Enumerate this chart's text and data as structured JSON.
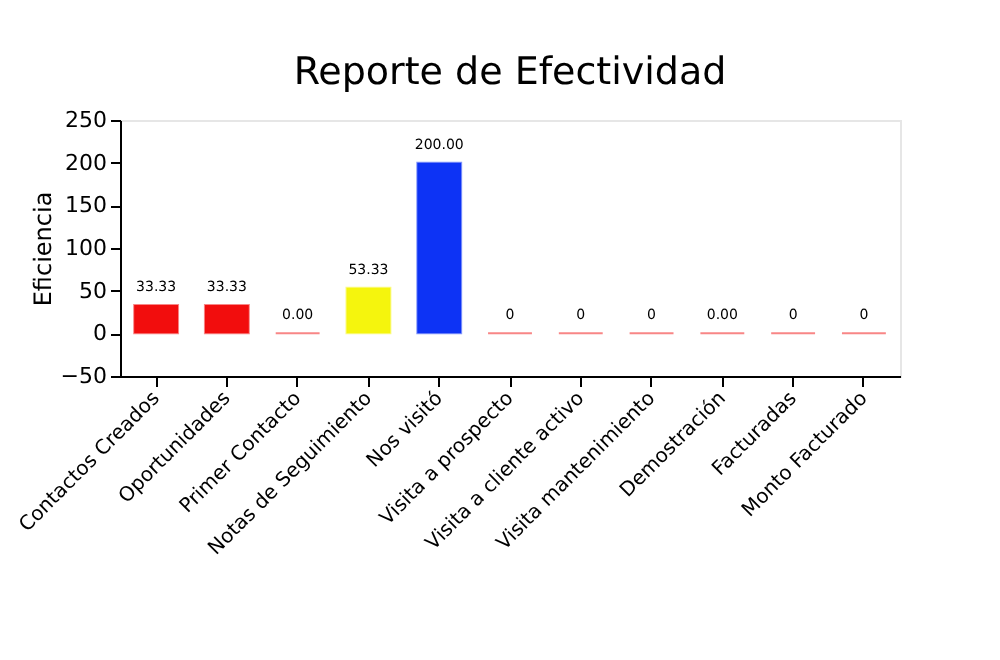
{
  "chart_data": {
    "type": "bar",
    "title": "Reporte de Efectividad",
    "ylabel": "Eficiencia",
    "categories": [
      "Contactos Creados",
      "Oportunidades",
      "Primer Contacto",
      "Notas de Seguimiento",
      "Nos visitó",
      "Visita a prospecto",
      "Visita a cliente activo",
      "Visita mantenimiento",
      "Demostración",
      "Facturadas",
      "Monto Facturado"
    ],
    "values": [
      33.33,
      33.33,
      0,
      53.33,
      200,
      0,
      0,
      0,
      0,
      0,
      0
    ],
    "value_labels": [
      "33.33",
      "33.33",
      "0.00",
      "53.33",
      "200.00",
      "0",
      "0",
      "0",
      "0.00",
      "0",
      "0"
    ],
    "colors": [
      "#f20d0d",
      "#f20d0d",
      "#f20d0d",
      "#f5f50d",
      "#0d33f5",
      "#f20d0d",
      "#f20d0d",
      "#f20d0d",
      "#f20d0d",
      "#f20d0d",
      "#f20d0d"
    ],
    "ylim": [
      -50,
      250
    ],
    "yticks": [
      -50,
      0,
      50,
      100,
      150,
      200,
      250
    ],
    "grid": false
  }
}
